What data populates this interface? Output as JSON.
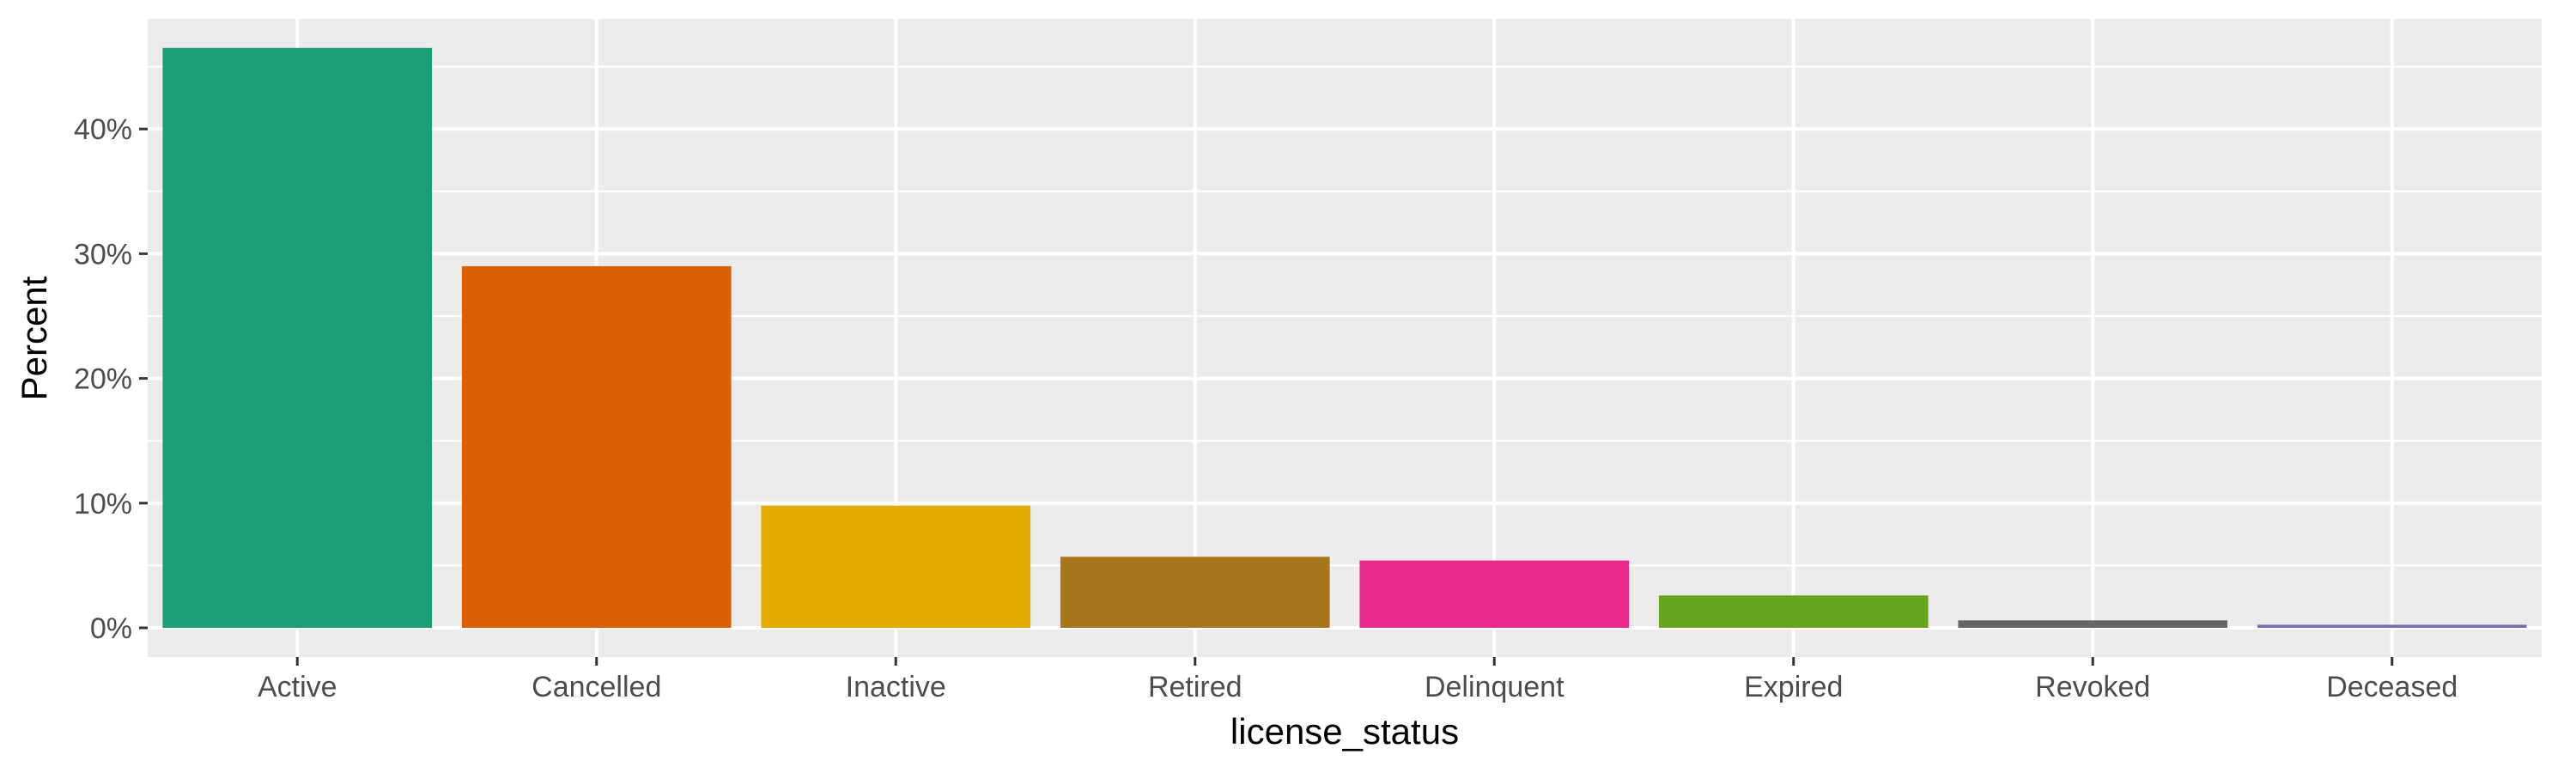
{
  "chart_data": {
    "type": "bar",
    "title": "",
    "xlabel": "license_status",
    "ylabel": "Percent",
    "categories": [
      "Active",
      "Cancelled",
      "Inactive",
      "Retired",
      "Delinquent",
      "Expired",
      "Revoked",
      "Deceased"
    ],
    "values": [
      46.5,
      29.0,
      9.8,
      5.7,
      5.4,
      2.6,
      0.6,
      0.25
    ],
    "colors": [
      "#1b9e77",
      "#d95f02",
      "#e6ab02",
      "#a6761d",
      "#e7298a",
      "#66a61e",
      "#666666",
      "#7570b3"
    ],
    "ylim": [
      0,
      48.8
    ],
    "yticks": [
      0,
      10,
      20,
      30,
      40
    ],
    "ytick_labels": [
      "0%",
      "10%",
      "20%",
      "30%",
      "40%"
    ],
    "grid": true,
    "legend": "none",
    "panel_background": "#ebebeb",
    "grid_color": "#ffffff"
  }
}
